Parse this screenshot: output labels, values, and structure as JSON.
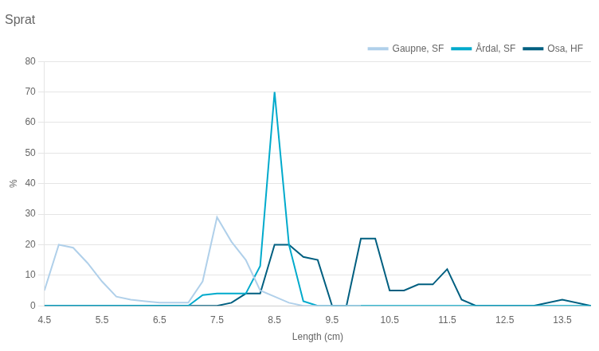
{
  "chart_data": {
    "type": "line",
    "title": "Sprat",
    "xlabel": "Length (cm)",
    "ylabel": "%",
    "xlim": [
      4.5,
      14.0
    ],
    "ylim": [
      0,
      80
    ],
    "xticks": [
      4.5,
      5.5,
      6.5,
      7.5,
      8.5,
      9.5,
      10.5,
      11.5,
      12.5,
      13.5
    ],
    "yticks": [
      0,
      10,
      20,
      30,
      40,
      50,
      60,
      70,
      80
    ],
    "grid": "y",
    "legend": "upper right",
    "series": [
      {
        "name": "Gaupne, SF",
        "color": "#b0d0ea",
        "x": [
          4.5,
          4.75,
          5.0,
          5.25,
          5.5,
          5.75,
          6.0,
          6.25,
          6.5,
          6.75,
          7.0,
          7.25,
          7.5,
          7.75,
          8.0,
          8.25,
          8.5,
          8.75,
          9.0,
          9.25,
          9.5,
          9.75,
          10.0
        ],
        "values": [
          5,
          20,
          19,
          14,
          8,
          3,
          2,
          1.5,
          1,
          1,
          1,
          8,
          29,
          21,
          15,
          5,
          3,
          1,
          0,
          0,
          0,
          0,
          0
        ]
      },
      {
        "name": "Årdal, SF",
        "color": "#00aacc",
        "x": [
          4.5,
          5.0,
          5.5,
          6.0,
          6.5,
          7.0,
          7.25,
          7.5,
          7.75,
          8.0,
          8.25,
          8.5,
          8.75,
          9.0,
          9.25,
          9.5,
          9.75,
          10.0,
          10.5,
          11.0,
          11.5,
          12.0,
          12.5,
          13.0,
          13.5,
          14.0
        ],
        "values": [
          0,
          0,
          0,
          0,
          0,
          0,
          3.5,
          4,
          4,
          4,
          13,
          70,
          20,
          1.5,
          0,
          0,
          0,
          0,
          0,
          0,
          0,
          0,
          0,
          0,
          0,
          0
        ]
      },
      {
        "name": "Osa, HF",
        "color": "#005f80",
        "x": [
          4.5,
          5.0,
          5.5,
          6.0,
          6.5,
          7.0,
          7.5,
          7.75,
          8.0,
          8.25,
          8.5,
          8.75,
          9.0,
          9.25,
          9.5,
          9.75,
          10.0,
          10.25,
          10.5,
          10.75,
          11.0,
          11.25,
          11.5,
          11.75,
          12.0,
          12.5,
          13.0,
          13.5,
          14.0
        ],
        "values": [
          0,
          0,
          0,
          0,
          0,
          0,
          0,
          1,
          4,
          4,
          20,
          20,
          16,
          15,
          0,
          0,
          22,
          22,
          5,
          5,
          7,
          7,
          12,
          2,
          0,
          0,
          0,
          2,
          0
        ]
      }
    ]
  }
}
